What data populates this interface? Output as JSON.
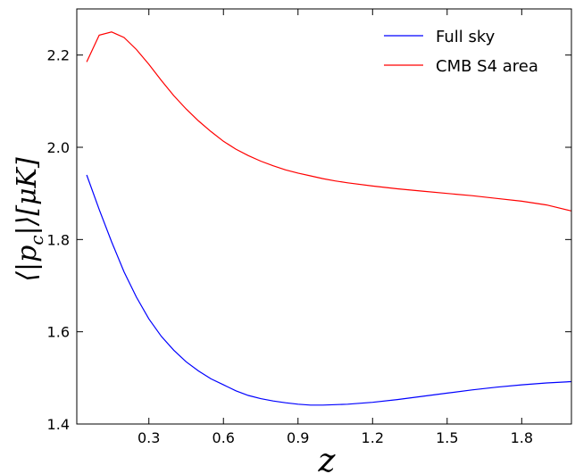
{
  "chart_data": {
    "type": "line",
    "xlabel": "z",
    "ylabel": "⟨|p_c|⟩[μK]",
    "ylabel_parts": {
      "main": "⟨|p",
      "sub": "c",
      "rest": "|⟩[μK]"
    },
    "xlim": [
      0.01,
      2.0
    ],
    "ylim": [
      1.4,
      2.3
    ],
    "xticks": [
      0.3,
      0.6,
      0.9,
      1.2,
      1.5,
      1.8
    ],
    "xtick_labels": [
      "0.3",
      "0.6",
      "0.9",
      "1.2",
      "1.5",
      "1.8"
    ],
    "yticks": [
      1.4,
      1.6,
      1.8,
      2.0,
      2.2
    ],
    "ytick_labels": [
      "1.4",
      "1.6",
      "1.8",
      "2.0",
      "2.2"
    ],
    "grid": false,
    "legend_position": "top-right",
    "series": [
      {
        "name": "Full sky",
        "color": "#0000ff",
        "x": [
          0.05,
          0.1,
          0.15,
          0.2,
          0.25,
          0.3,
          0.35,
          0.4,
          0.45,
          0.5,
          0.55,
          0.6,
          0.65,
          0.7,
          0.75,
          0.8,
          0.85,
          0.9,
          0.95,
          1.0,
          1.05,
          1.1,
          1.2,
          1.3,
          1.4,
          1.5,
          1.6,
          1.7,
          1.8,
          1.9,
          2.0
        ],
        "y": [
          1.94,
          1.865,
          1.795,
          1.73,
          1.675,
          1.628,
          1.59,
          1.56,
          1.535,
          1.515,
          1.498,
          1.485,
          1.472,
          1.462,
          1.455,
          1.45,
          1.446,
          1.443,
          1.441,
          1.441,
          1.442,
          1.443,
          1.447,
          1.453,
          1.46,
          1.467,
          1.474,
          1.48,
          1.485,
          1.489,
          1.492
        ]
      },
      {
        "name": "CMB S4 area",
        "color": "#ff0000",
        "x": [
          0.05,
          0.1,
          0.15,
          0.2,
          0.25,
          0.3,
          0.35,
          0.4,
          0.45,
          0.5,
          0.55,
          0.6,
          0.65,
          0.7,
          0.75,
          0.8,
          0.85,
          0.9,
          0.95,
          1.0,
          1.05,
          1.1,
          1.2,
          1.3,
          1.4,
          1.5,
          1.6,
          1.7,
          1.8,
          1.9,
          2.0
        ],
        "y": [
          2.185,
          2.243,
          2.25,
          2.238,
          2.212,
          2.18,
          2.145,
          2.112,
          2.083,
          2.057,
          2.034,
          2.013,
          1.996,
          1.982,
          1.97,
          1.96,
          1.951,
          1.944,
          1.938,
          1.932,
          1.927,
          1.923,
          1.916,
          1.91,
          1.905,
          1.9,
          1.895,
          1.889,
          1.883,
          1.875,
          1.862
        ]
      }
    ]
  }
}
